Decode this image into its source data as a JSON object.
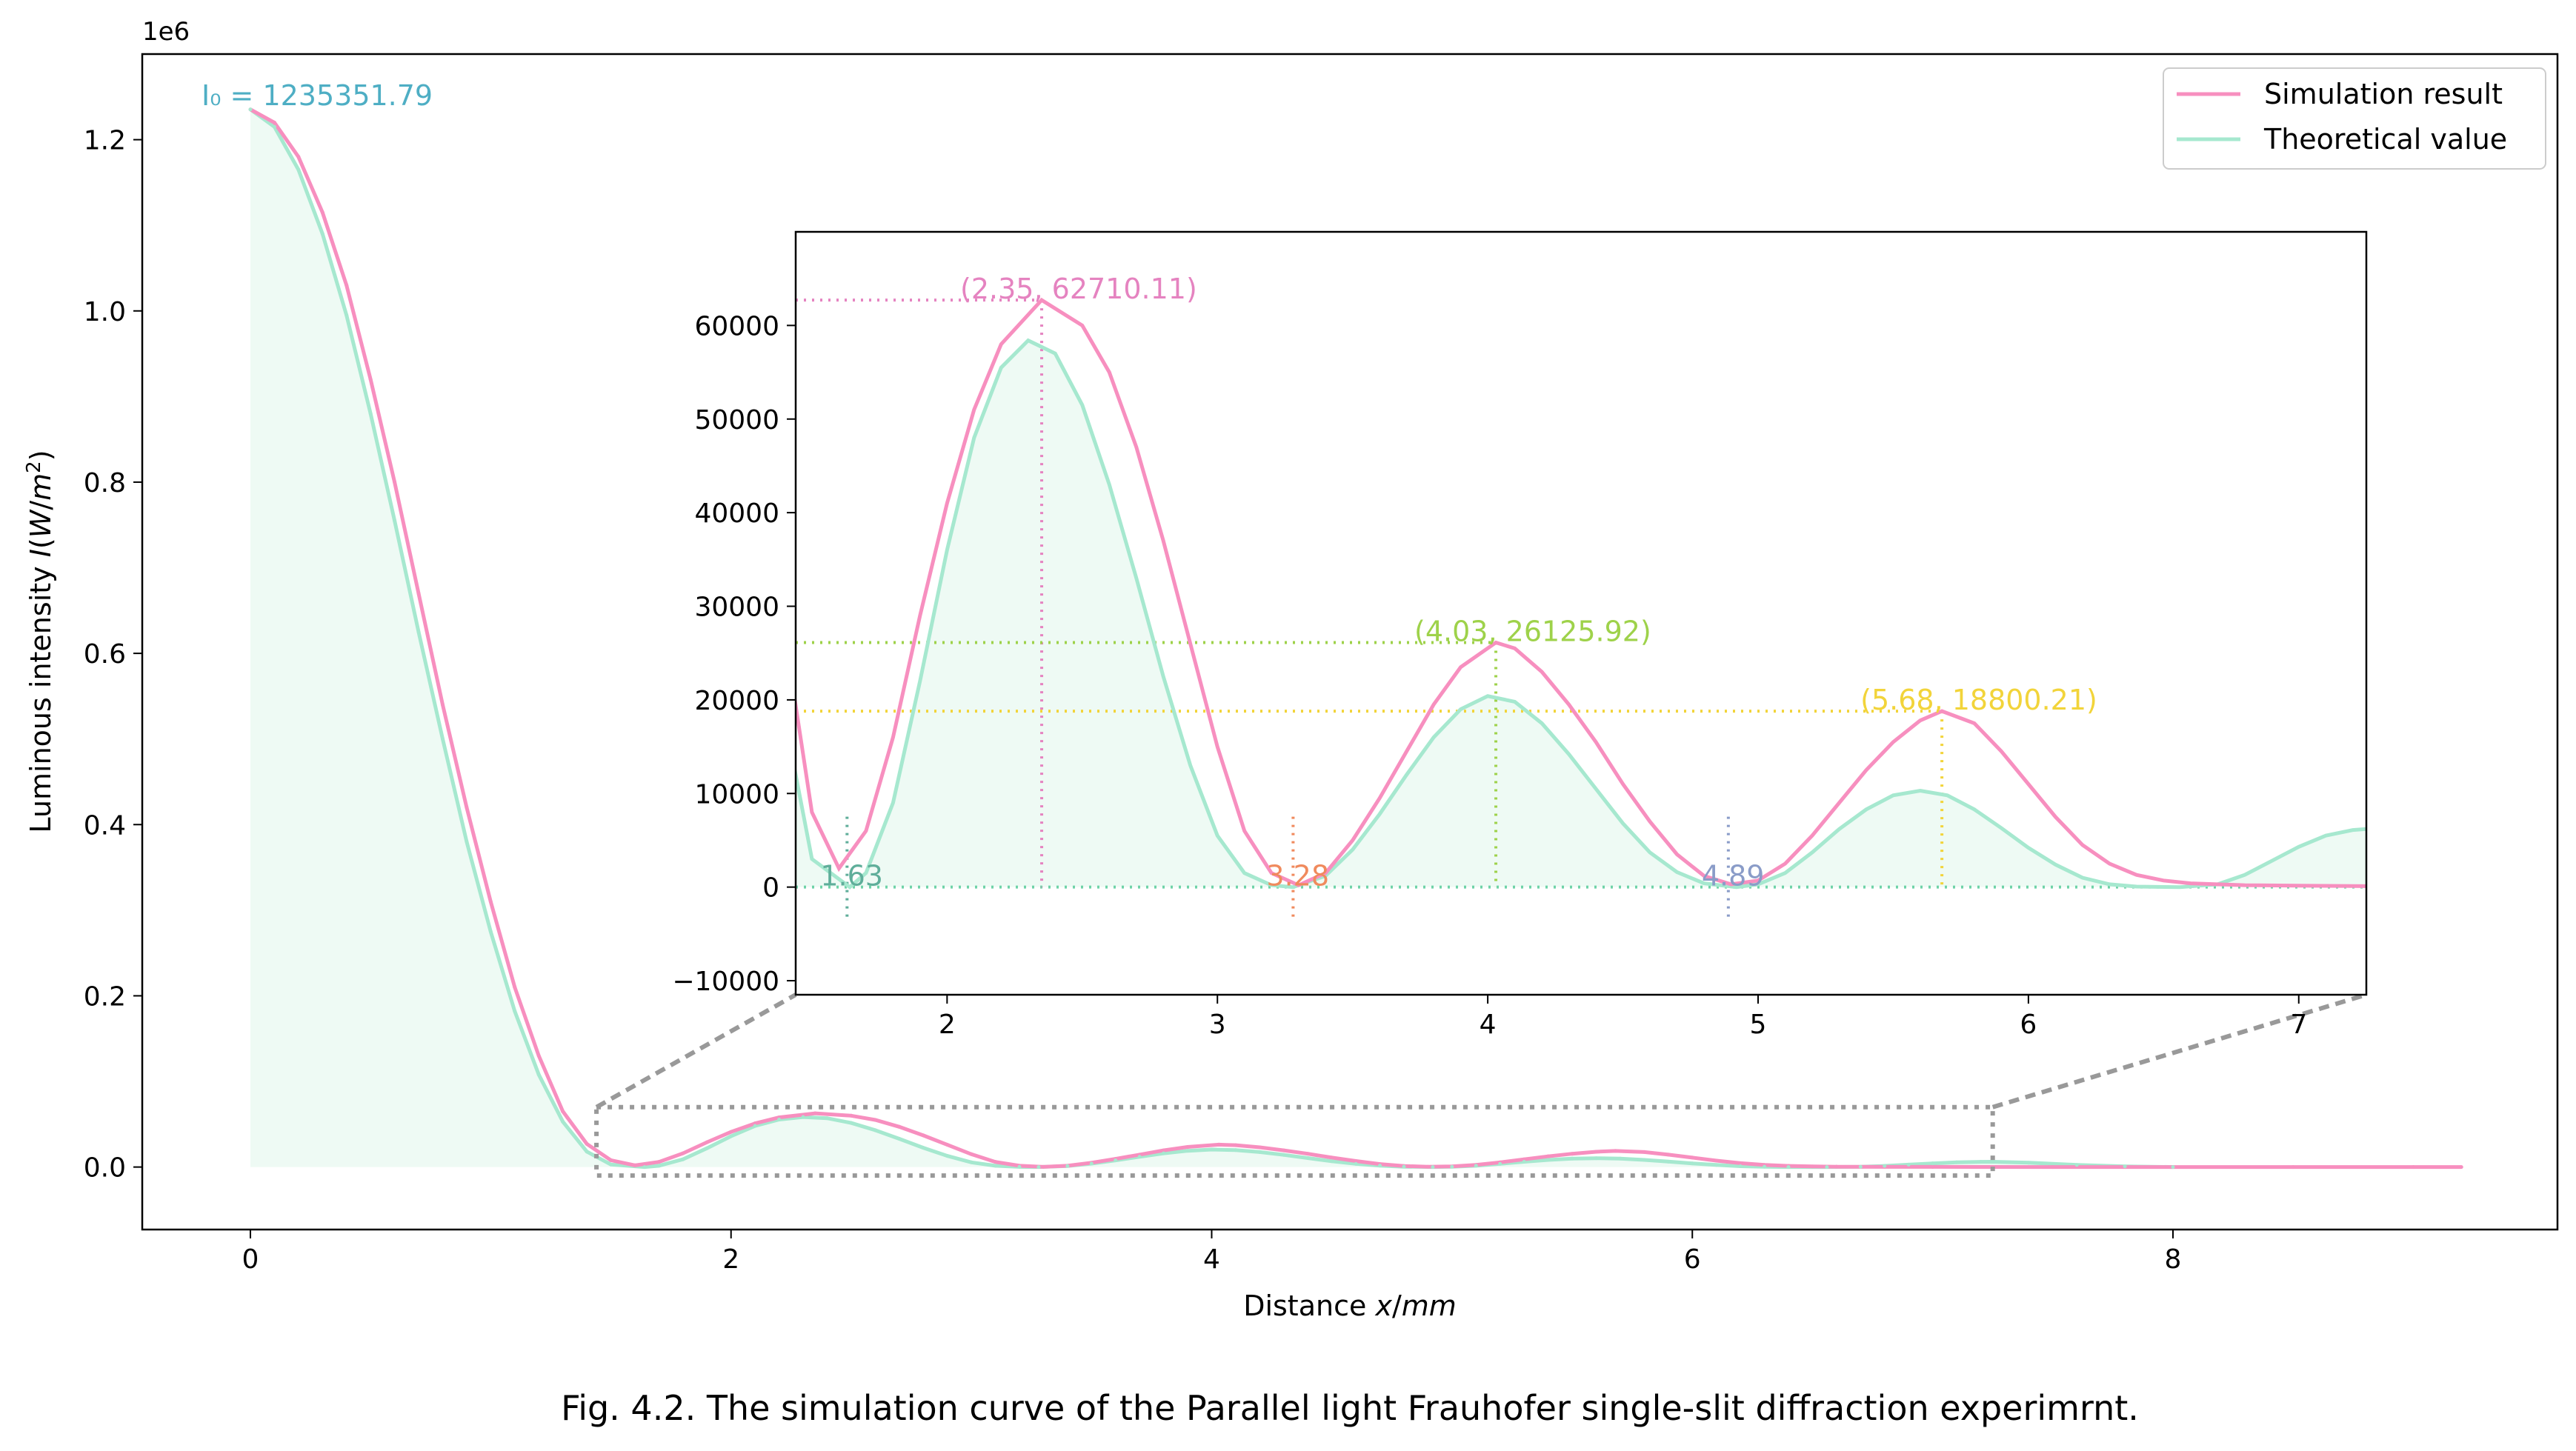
{
  "chart_data": [
    {
      "type": "line",
      "panel": "main",
      "xlabel": "Distance x/mm",
      "ylabel": "Luminous intensity I(W/m²)",
      "y_offset_text": "1e6",
      "xlim": [
        -0.45,
        9.6
      ],
      "ylim": [
        -73000,
        1300000
      ],
      "x_ticks": [
        0,
        2,
        4,
        6,
        8
      ],
      "x_tick_labels": [
        "0",
        "2",
        "4",
        "6",
        "8"
      ],
      "y_ticks": [
        0,
        200000,
        400000,
        600000,
        800000,
        1000000,
        1200000
      ],
      "y_tick_labels": [
        "0.0",
        "0.2",
        "0.4",
        "0.6",
        "0.8",
        "1.0",
        "1.2"
      ],
      "grid": false,
      "legend_position": "top-right",
      "annotation": {
        "label": "I₀ = 1235351.79",
        "value": 1235351.79,
        "color": "#4eaec4"
      },
      "theory": {
        "max_x": 8.0
      },
      "series": [
        {
          "name": "Simulation result",
          "color": "#f78fbf",
          "x": [
            0,
            0.1,
            0.2,
            0.3,
            0.4,
            0.5,
            0.6,
            0.7,
            0.8,
            0.9,
            1.0,
            1.1,
            1.2,
            1.3,
            1.4,
            1.5,
            1.6,
            1.7,
            1.8,
            1.9,
            2.0,
            2.1,
            2.2,
            2.35,
            2.5,
            2.6,
            2.7,
            2.8,
            2.9,
            3.0,
            3.1,
            3.2,
            3.3,
            3.4,
            3.5,
            3.6,
            3.7,
            3.8,
            3.9,
            4.03,
            4.1,
            4.2,
            4.3,
            4.4,
            4.5,
            4.6,
            4.7,
            4.8,
            4.9,
            5.0,
            5.1,
            5.2,
            5.3,
            5.4,
            5.5,
            5.6,
            5.68,
            5.8,
            5.9,
            6.0,
            6.1,
            6.2,
            6.3,
            6.4,
            6.5,
            6.6,
            6.8,
            7.0,
            7.5,
            8.0,
            8.5,
            9.0,
            9.2
          ],
          "y": [
            1235351.79,
            1220000,
            1180000,
            1115000,
            1030000,
            920000,
            800000,
            670000,
            540000,
            420000,
            310000,
            210000,
            130000,
            65000,
            27000,
            8000,
            2000,
            6000,
            16000,
            29000,
            41000,
            51000,
            58000,
            62710.11,
            60000,
            55000,
            47000,
            37000,
            26000,
            15000,
            6000,
            1500,
            200,
            1500,
            5000,
            9500,
            14500,
            19500,
            23500,
            26125.92,
            25500,
            23000,
            19500,
            15500,
            11000,
            7000,
            3500,
            1200,
            300,
            700,
            2500,
            5500,
            9000,
            12500,
            15500,
            17800,
            18800.21,
            17500,
            14500,
            11000,
            7500,
            4500,
            2500,
            1300,
            700,
            400,
            200,
            150,
            50,
            0,
            0,
            0,
            0
          ]
        },
        {
          "name": "Theoretical value",
          "color": "#a6e8cf",
          "x": [
            0,
            0.1,
            0.2,
            0.3,
            0.4,
            0.5,
            0.6,
            0.7,
            0.8,
            0.9,
            1.0,
            1.1,
            1.2,
            1.3,
            1.4,
            1.5,
            1.64,
            1.7,
            1.8,
            1.9,
            2.0,
            2.1,
            2.2,
            2.3,
            2.4,
            2.5,
            2.6,
            2.7,
            2.8,
            2.9,
            3.0,
            3.1,
            3.2,
            3.28,
            3.4,
            3.5,
            3.6,
            3.7,
            3.8,
            3.9,
            4.0,
            4.1,
            4.2,
            4.3,
            4.4,
            4.5,
            4.6,
            4.7,
            4.8,
            4.92,
            5.0,
            5.1,
            5.2,
            5.3,
            5.4,
            5.5,
            5.6,
            5.7,
            5.8,
            5.9,
            6.0,
            6.1,
            6.2,
            6.3,
            6.4,
            6.56,
            6.7,
            6.8,
            6.9,
            7.0,
            7.1,
            7.2,
            7.25,
            7.4,
            7.6,
            7.8,
            8.0
          ],
          "y": [
            1235351.79,
            1215000,
            1165000,
            1090000,
            995000,
            880000,
            755000,
            625000,
            500000,
            380000,
            275000,
            182000,
            108000,
            53000,
            18000,
            3000,
            0,
            1500,
            9000,
            22000,
            36000,
            48000,
            55500,
            58400,
            57000,
            51500,
            43000,
            33000,
            22500,
            13000,
            5500,
            1500,
            200,
            0,
            1200,
            4000,
            7800,
            12000,
            16000,
            19000,
            20400,
            19800,
            17500,
            14200,
            10500,
            6800,
            3700,
            1600,
            400,
            0,
            300,
            1500,
            3700,
            6200,
            8300,
            9800,
            10300,
            9800,
            8300,
            6300,
            4200,
            2400,
            1000,
            300,
            50,
            0,
            300,
            1300,
            2800,
            4300,
            5500,
            6100,
            6200,
            5000,
            2500,
            800,
            0
          ]
        }
      ],
      "zoom_region": {
        "xlim": [
          1.44,
          7.25
        ],
        "ylim": [
          -10000,
          70000
        ]
      }
    },
    {
      "type": "line",
      "panel": "inset",
      "xlim": [
        1.44,
        7.25
      ],
      "ylim": [
        -11500,
        70000
      ],
      "x_ticks": [
        2,
        3,
        4,
        5,
        6,
        7
      ],
      "x_tick_labels": [
        "2",
        "3",
        "4",
        "5",
        "6",
        "7"
      ],
      "y_ticks": [
        -10000,
        0,
        10000,
        20000,
        30000,
        40000,
        50000,
        60000
      ],
      "y_tick_labels": [
        "−10000",
        "0",
        "10000",
        "20000",
        "30000",
        "40000",
        "50000",
        "60000"
      ],
      "minima": [
        {
          "x": 1.63,
          "label": "1.63",
          "color": "#5fae9a"
        },
        {
          "x": 3.28,
          "label": "3.28",
          "color": "#f08a5d"
        },
        {
          "x": 4.89,
          "label": "4.89",
          "color": "#8a9cc8"
        }
      ],
      "maxima": [
        {
          "x": 2.35,
          "y": 62710.11,
          "label": "(2.35, 62710.11)",
          "color": "#e583c0"
        },
        {
          "x": 4.03,
          "y": 26125.92,
          "label": "(4.03, 26125.92)",
          "color": "#9ed24a"
        },
        {
          "x": 5.68,
          "y": 18800.21,
          "label": "(5.68, 18800.21)",
          "color": "#f2d43a"
        }
      ],
      "zero_line_color": "#6fd3a8"
    }
  ],
  "caption": "Fig. 4.2. The simulation curve of the Parallel light Frauhofer single-slit diffraction experimrnt.",
  "colors": {
    "fill": "#eefaf4",
    "axis": "#000000",
    "zoom_box": "#999999"
  }
}
